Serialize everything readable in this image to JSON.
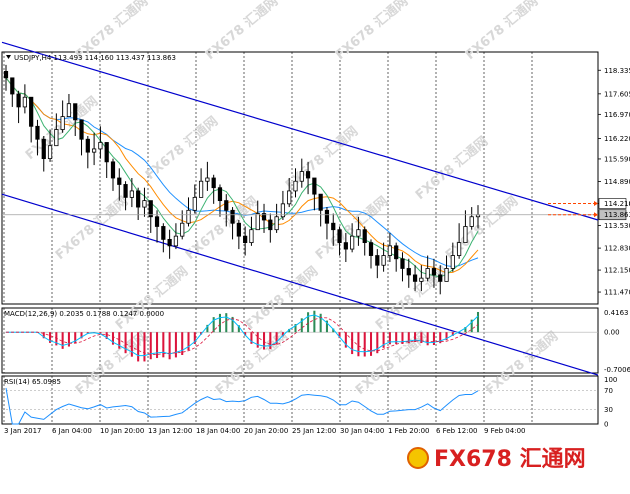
{
  "chart_data": {
    "type": "candlestick",
    "symbol_header": "USDJPY,H4  113.493 114.160 113.437 113.863",
    "price_ticks": [
      "118.335",
      "117.605",
      "116.970",
      "116.220",
      "115.590",
      "114.890",
      "114.210",
      "113.530",
      "112.830",
      "112.150",
      "111.470"
    ],
    "highlight_prices": [
      {
        "value": "114.210",
        "color": "#ffffff",
        "text_color": "#000000"
      },
      {
        "value": "113.863",
        "color": "#c0c0c0",
        "text_color": "#000000"
      }
    ],
    "time_labels": [
      "3 Jan 2017",
      "6 Jan 04:00",
      "10 Jan 20:00",
      "13 Jan 12:00",
      "18 Jan 04:00",
      "20 Jan 20:00",
      "25 Jan 12:00",
      "30 Jan 04:00",
      "1 Feb 20:00",
      "6 Feb 12:00",
      "9 Feb 04:00"
    ],
    "price_range": [
      111.1,
      118.9
    ],
    "closes": [
      118.1,
      117.6,
      117.2,
      117.5,
      116.6,
      116.2,
      115.6,
      116.0,
      116.5,
      116.9,
      117.3,
      116.8,
      116.2,
      115.8,
      115.9,
      116.1,
      115.5,
      115.0,
      114.8,
      114.4,
      114.6,
      114.1,
      114.3,
      113.8,
      113.5,
      113.1,
      112.9,
      113.2,
      113.6,
      114.0,
      114.4,
      114.9,
      115.0,
      114.7,
      114.3,
      114.0,
      113.6,
      113.2,
      113.0,
      113.4,
      113.9,
      113.7,
      113.4,
      113.8,
      114.2,
      114.6,
      114.9,
      115.2,
      115.0,
      114.5,
      114.0,
      113.6,
      113.4,
      113.0,
      112.8,
      113.2,
      113.4,
      113.0,
      112.6,
      112.3,
      112.6,
      112.9,
      112.5,
      112.2,
      112.0,
      111.8,
      111.9,
      112.2,
      112.0,
      111.8,
      112.2,
      112.6,
      113.0,
      113.5,
      113.8,
      113.863
    ],
    "highs": [
      118.5,
      118.0,
      117.7,
      117.9,
      117.2,
      116.8,
      116.3,
      116.5,
      117.0,
      117.4,
      117.6,
      117.3,
      116.7,
      116.3,
      116.4,
      116.6,
      116.1,
      115.6,
      115.3,
      114.9,
      115.0,
      114.7,
      114.7,
      114.3,
      114.0,
      113.6,
      113.4,
      113.6,
      114.0,
      114.4,
      114.8,
      115.3,
      115.5,
      115.1,
      114.8,
      114.5,
      114.1,
      113.7,
      113.5,
      113.8,
      114.3,
      114.2,
      113.9,
      114.2,
      114.6,
      115.0,
      115.3,
      115.6,
      115.5,
      115.0,
      114.5,
      114.1,
      113.9,
      113.5,
      113.3,
      113.6,
      113.8,
      113.5,
      113.1,
      112.8,
      113.0,
      113.3,
      113.0,
      112.7,
      112.5,
      112.3,
      112.3,
      112.6,
      112.5,
      112.3,
      112.6,
      113.0,
      113.6,
      114.0,
      114.1,
      114.16
    ],
    "lows": [
      117.7,
      117.2,
      116.7,
      117.0,
      116.1,
      115.7,
      115.2,
      115.5,
      116.0,
      116.4,
      116.9,
      116.3,
      115.7,
      115.3,
      115.4,
      115.6,
      115.0,
      114.6,
      114.3,
      114.0,
      114.1,
      113.7,
      113.8,
      113.3,
      113.0,
      112.7,
      112.5,
      112.8,
      113.1,
      113.5,
      113.9,
      114.4,
      114.6,
      114.2,
      113.8,
      113.5,
      113.1,
      112.8,
      112.6,
      112.9,
      113.4,
      113.3,
      113.0,
      113.3,
      113.7,
      114.1,
      114.4,
      114.7,
      114.5,
      114.0,
      113.5,
      113.1,
      112.9,
      112.6,
      112.4,
      112.7,
      112.9,
      112.6,
      112.2,
      111.9,
      112.1,
      112.4,
      112.1,
      111.8,
      111.6,
      111.5,
      111.5,
      111.8,
      111.6,
      111.4,
      111.8,
      112.1,
      112.5,
      113.0,
      113.4,
      113.437
    ],
    "macd_label": "MACD(12,26,9) 0.2035 0.1788 0.1247 0.0000",
    "macd_ticks": [
      "0.4163",
      "0.00",
      "-0.7006"
    ],
    "macd_range": [
      -0.7006,
      0.4163
    ],
    "rsi_label": "RSI(14) 65.0985",
    "rsi_ticks": [
      "100",
      "70",
      "30",
      "0"
    ],
    "rsi_range": [
      0,
      100
    ],
    "channel_upper": {
      "x1": 0,
      "y1": 119.2,
      "x2": 1,
      "y2": 113.7
    },
    "channel_lower": {
      "x1": 0,
      "y1": 114.5,
      "x2": 1,
      "y2": 108.9
    },
    "colors": {
      "bull": "#ffffff",
      "bear": "#000000",
      "wick": "#000000",
      "ma_fast": "#3cb371",
      "ma_mid": "#ff8c00",
      "ma_slow": "#1e90ff",
      "channel": "#0000cd",
      "macd_pos": "#2e8b57",
      "macd_neg": "#dc143c",
      "macd_signal": "#00bfff",
      "macd_dash": "#dc143c",
      "rsi": "#1e90ff",
      "grid": "#000000",
      "arrow": "#ff4500"
    },
    "watermark": "FX678 汇通网"
  }
}
